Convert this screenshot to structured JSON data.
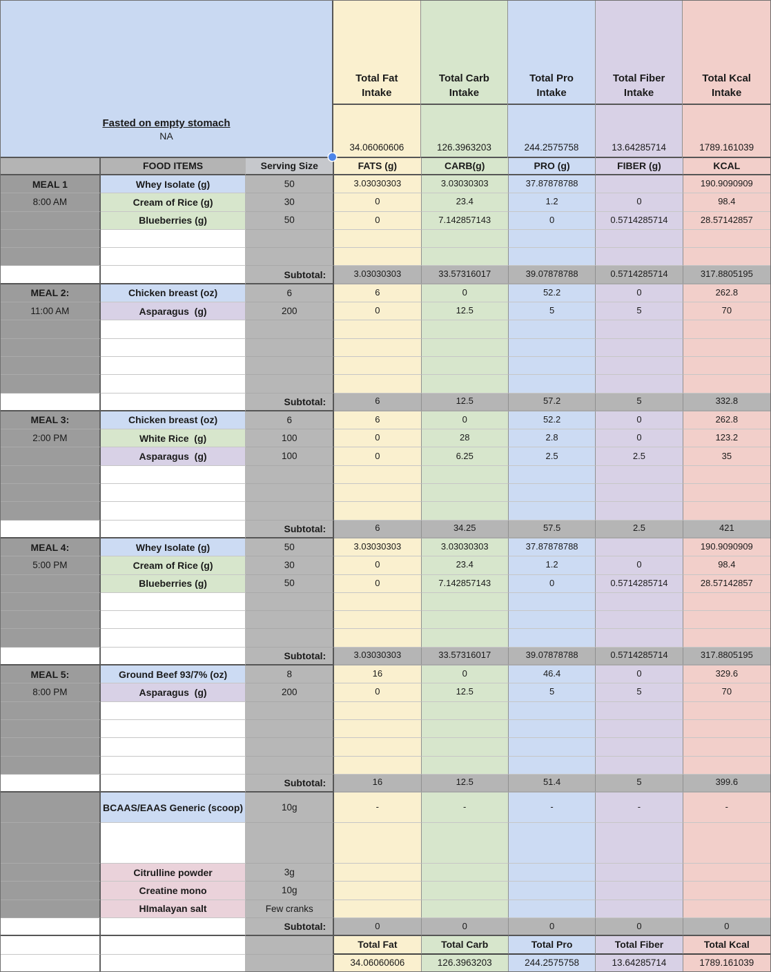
{
  "colors": {
    "yellow": "#faf0cf",
    "green": "#d7e6cc",
    "blue": "#ccdbf3",
    "purple": "#d8d1e6",
    "pink": "#f2cfca",
    "suppink": "#ead2da",
    "note_blue": "#c9d9f2",
    "handle_blue": "#4c85e8",
    "grey_section": "#9c9c9c",
    "grey_serving": "#b7b7b7",
    "grey_subtotal": "#b5b5b5",
    "grey_header": "#b4b4b4",
    "grey_serving_header": "#c6c8cc"
  },
  "top": {
    "note_title": "Fasted on empty stomach",
    "note_value": "NA",
    "intake_headers": [
      "Total Fat Intake",
      "Total Carb Intake",
      "Total Pro Intake",
      "Total Fiber Intake",
      "Total Kcal Intake"
    ],
    "intake_totals": [
      "34.06060606",
      "126.3963203",
      "244.2575758",
      "13.64285714",
      "1789.161039"
    ]
  },
  "columns": {
    "food": "FOOD ITEMS",
    "serving": "Serving Size",
    "nutrients": [
      "FATS (g)",
      "CARB(g)",
      "PRO (g)",
      "FIBER (g)",
      "KCAL"
    ]
  },
  "ui": {
    "subtotal_label": "Subtotal:"
  },
  "meals": [
    {
      "label": "MEAL 1",
      "time": "8:00 AM",
      "empty_rows": 2,
      "items": [
        {
          "name": "Whey Isolate (g)",
          "color": "blue",
          "serving": "50",
          "values": [
            "3.03030303",
            "3.03030303",
            "37.87878788",
            "",
            "190.9090909"
          ]
        },
        {
          "name": "Cream of Rice (g)",
          "color": "green",
          "serving": "30",
          "values": [
            "0",
            "23.4",
            "1.2",
            "0",
            "98.4"
          ]
        },
        {
          "name": "Blueberries (g)",
          "color": "green",
          "serving": "50",
          "values": [
            "0",
            "7.142857143",
            "0",
            "0.5714285714",
            "28.57142857"
          ]
        }
      ],
      "subtotal": [
        "3.03030303",
        "33.57316017",
        "39.07878788",
        "0.5714285714",
        "317.8805195"
      ]
    },
    {
      "label": "MEAL 2:",
      "time": "11:00 AM",
      "empty_rows": 4,
      "items": [
        {
          "name": "Chicken breast (oz)",
          "color": "blue",
          "serving": "6",
          "values": [
            "6",
            "0",
            "52.2",
            "0",
            "262.8"
          ]
        },
        {
          "name": "Asparagus  (g)",
          "color": "purple",
          "serving": "200",
          "values": [
            "0",
            "12.5",
            "5",
            "5",
            "70"
          ]
        }
      ],
      "subtotal": [
        "6",
        "12.5",
        "57.2",
        "5",
        "332.8"
      ]
    },
    {
      "label": "MEAL 3:",
      "time": "2:00 PM",
      "empty_rows": 3,
      "items": [
        {
          "name": "Chicken breast (oz)",
          "color": "blue",
          "serving": "6",
          "values": [
            "6",
            "0",
            "52.2",
            "0",
            "262.8"
          ]
        },
        {
          "name": "White Rice  (g)",
          "color": "green",
          "serving": "100",
          "values": [
            "0",
            "28",
            "2.8",
            "0",
            "123.2"
          ]
        },
        {
          "name": "Asparagus  (g)",
          "color": "purple",
          "serving": "100",
          "values": [
            "0",
            "6.25",
            "2.5",
            "2.5",
            "35"
          ]
        }
      ],
      "subtotal": [
        "6",
        "34.25",
        "57.5",
        "2.5",
        "421"
      ]
    },
    {
      "label": "MEAL 4:",
      "time": "5:00 PM",
      "empty_rows": 3,
      "items": [
        {
          "name": "Whey Isolate (g)",
          "color": "blue",
          "serving": "50",
          "values": [
            "3.03030303",
            "3.03030303",
            "37.87878788",
            "",
            "190.9090909"
          ]
        },
        {
          "name": "Cream of Rice (g)",
          "color": "green",
          "serving": "30",
          "values": [
            "0",
            "23.4",
            "1.2",
            "0",
            "98.4"
          ]
        },
        {
          "name": "Blueberries (g)",
          "color": "green",
          "serving": "50",
          "values": [
            "0",
            "7.142857143",
            "0",
            "0.5714285714",
            "28.57142857"
          ]
        }
      ],
      "subtotal": [
        "3.03030303",
        "33.57316017",
        "39.07878788",
        "0.5714285714",
        "317.8805195"
      ]
    },
    {
      "label": "MEAL 5:",
      "time": "8:00 PM",
      "empty_rows": 4,
      "items": [
        {
          "name": "Ground Beef 93/7% (oz)",
          "color": "blue",
          "serving": "8",
          "values": [
            "16",
            "0",
            "46.4",
            "0",
            "329.6"
          ]
        },
        {
          "name": "Asparagus  (g)",
          "color": "purple",
          "serving": "200",
          "values": [
            "0",
            "12.5",
            "5",
            "5",
            "70"
          ]
        }
      ],
      "subtotal": [
        "16",
        "12.5",
        "51.4",
        "5",
        "399.6"
      ]
    }
  ],
  "supplements": {
    "items": [
      {
        "name": "BCAAS/EAAS Generic (scoop)",
        "color": "blue",
        "serving": "10g",
        "values": [
          "-",
          "-",
          "-",
          "-",
          "-"
        ]
      },
      {
        "name": "Citrulline powder",
        "color": "suppink",
        "serving": "3g"
      },
      {
        "name": "Creatine mono",
        "color": "suppink",
        "serving": "10g"
      },
      {
        "name": "HImalayan salt",
        "color": "suppink",
        "serving": "Few cranks"
      }
    ],
    "subtotal": [
      "0",
      "0",
      "0",
      "0",
      "0"
    ]
  },
  "footer": {
    "headers": [
      "Total Fat",
      "Total Carb",
      "Total Pro",
      "Total Fiber",
      "Total Kcal"
    ],
    "totals": [
      "34.06060606",
      "126.3963203",
      "244.2575758",
      "13.64285714",
      "1789.161039"
    ]
  }
}
